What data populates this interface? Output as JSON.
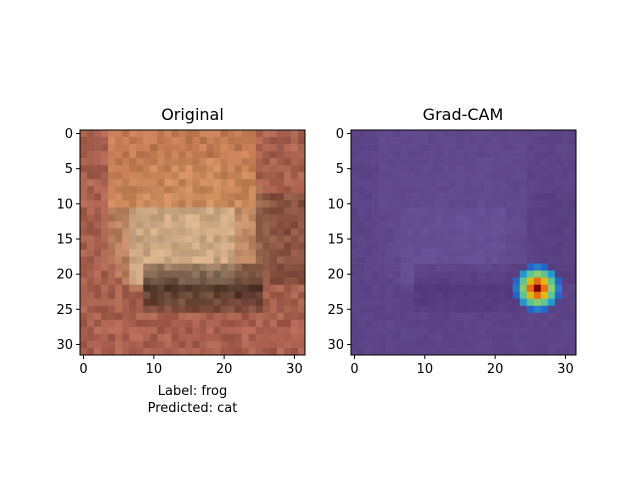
{
  "panels": [
    {
      "title": "Original",
      "xticks": [
        "0",
        "10",
        "20",
        "30"
      ],
      "yticks": [
        "0",
        "5",
        "10",
        "15",
        "20",
        "25",
        "30"
      ],
      "caption": [
        "Label: frog",
        "Predicted: cat"
      ]
    },
    {
      "title": "Grad-CAM",
      "xticks": [
        "0",
        "10",
        "20",
        "30"
      ],
      "yticks": [
        "0",
        "5",
        "10",
        "15",
        "20",
        "25",
        "30"
      ]
    }
  ],
  "image": {
    "grid": 32,
    "description_colors": {
      "frog_body": "#c89a70",
      "background": "#a7614e"
    }
  },
  "heatmap": {
    "peak_pixel": [
      26,
      22
    ],
    "colormap": "jet",
    "base_color": "#4b2f73"
  }
}
